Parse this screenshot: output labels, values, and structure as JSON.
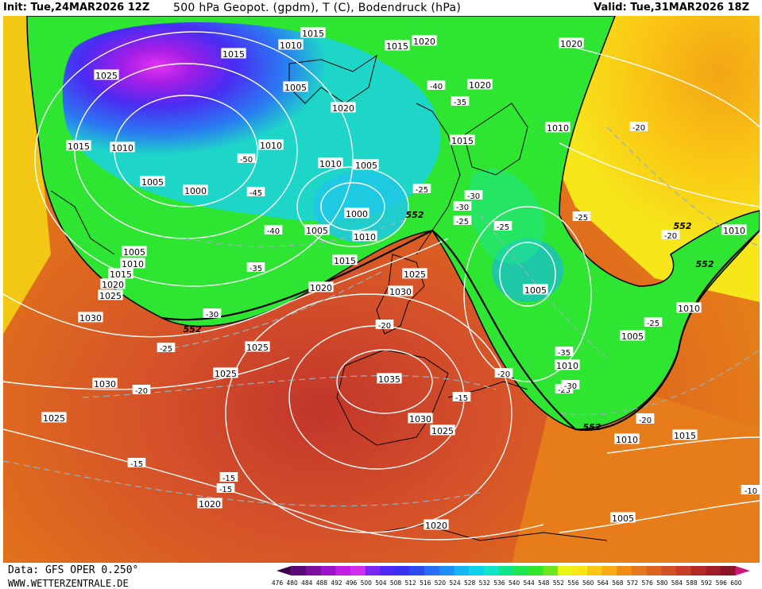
{
  "header": {
    "init": "Init: Tue,24MAR2026 12Z",
    "title": "500 hPa Geopot. (gpdm), T (C), Bodendruck (hPa)",
    "valid": "Valid: Tue,31MAR2026 18Z"
  },
  "footer": {
    "data_source": "Data: GFS OPER 0.250°",
    "website": "WWW.WETTERZENTRALE.DE"
  },
  "legend": {
    "values": [
      "476",
      "480",
      "484",
      "488",
      "492",
      "496",
      "500",
      "504",
      "508",
      "512",
      "516",
      "520",
      "524",
      "528",
      "532",
      "536",
      "540",
      "544",
      "548",
      "552",
      "556",
      "560",
      "564",
      "568",
      "572",
      "576",
      "580",
      "584",
      "588",
      "592",
      "596",
      "600"
    ],
    "colors": [
      "#3d0050",
      "#5a0a78",
      "#7a0fa0",
      "#9c14c8",
      "#c21ee6",
      "#d22cf0",
      "#7a28f0",
      "#4e28f5",
      "#3a32f0",
      "#2c4cf0",
      "#2a6ef5",
      "#1e90f5",
      "#14b4f5",
      "#0fd2eb",
      "#0fe6c8",
      "#0fe68c",
      "#1ee650",
      "#32e628",
      "#6ee61e",
      "#e6f514",
      "#fae614",
      "#fac814",
      "#faaa14",
      "#f08c14",
      "#e6781e",
      "#dc641e",
      "#d25028",
      "#c83c28",
      "#b42828",
      "#a01e28",
      "#8c1428",
      "#d2147a"
    ]
  },
  "pressure_labels": [
    "1015",
    "1010",
    "1015",
    "1015",
    "1020",
    "1025",
    "1005",
    "1020",
    "1015",
    "1020",
    "1010",
    "1005",
    "1015",
    "1010",
    "1010",
    "1005",
    "1000",
    "1005",
    "1000",
    "1005",
    "1010",
    "1005",
    "1010",
    "1015",
    "1020",
    "1025",
    "1015",
    "1020",
    "1025",
    "1030",
    "1030",
    "1025",
    "1025",
    "1030",
    "1035",
    "1030",
    "1025",
    "1025",
    "1020",
    "1020",
    "1010",
    "1010",
    "1010",
    "1005",
    "1005",
    "1010",
    "1015",
    "1020",
    "1010",
    "1005"
  ],
  "temperature_labels": [
    "-40",
    "-35",
    "-50",
    "-45",
    "-40",
    "-35",
    "-30",
    "-25",
    "-25",
    "-30",
    "-30",
    "-25",
    "-25",
    "-20",
    "-20",
    "-25",
    "-20",
    "-15",
    "-20",
    "-15",
    "-15",
    "-15",
    "-20",
    "-20",
    "-25",
    "-35",
    "-30",
    "-25",
    "-20",
    "-10",
    "-20"
  ],
  "geopotential_labels": [
    "552",
    "552",
    "552",
    "552",
    "552"
  ]
}
